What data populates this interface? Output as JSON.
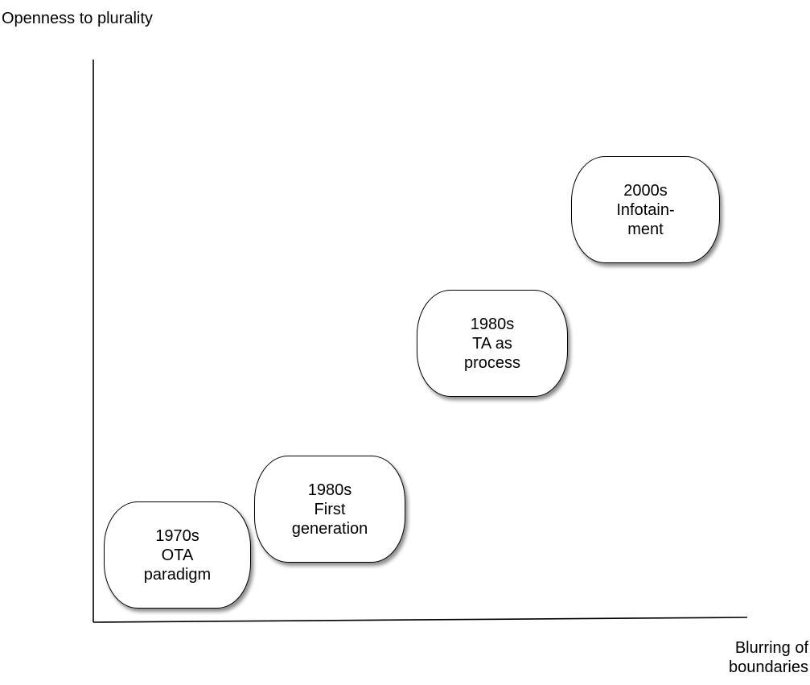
{
  "axes": {
    "y_label": "Openness to plurality",
    "x_label_line1": "Blurring of",
    "x_label_line2": "boundaries"
  },
  "nodes": [
    {
      "line1": "1970s",
      "line2": "OTA",
      "line3": "paradigm"
    },
    {
      "line1": "1980s",
      "line2": "First",
      "line3": "generation"
    },
    {
      "line1": "1980s",
      "line2": "TA as",
      "line3": "process"
    },
    {
      "line1": "2000s",
      "line2": "Infotain-",
      "line3": "ment"
    }
  ]
}
